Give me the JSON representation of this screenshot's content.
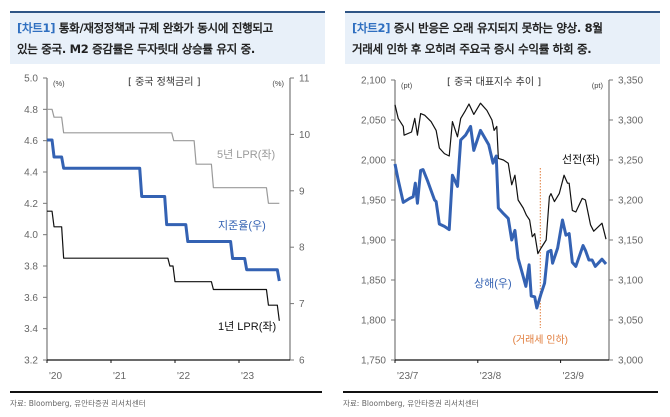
{
  "panels": [
    {
      "tag": "[차트1]",
      "title_line1": "통화/재정정책과 규제 완화가 동시에 진행되고",
      "title_line2": "있는 중국. M2 증감률은 두자릿대 상승률 유지 중.",
      "source": "자료: Bloomberg, 유안타증권 리서치센터"
    },
    {
      "tag": "[차트2]",
      "title_line1": "증시 반응은 오래 유지되지 못하는 양상. 8월",
      "title_line2": "거래세 인하 후 오히려 주요국 증시 수익률 하회 중.",
      "source": "자료: Bloomberg, 유안타증권 리서치센터"
    }
  ],
  "colors": {
    "header_bg": "#e8f0f9",
    "header_border": "#2f5585",
    "tag": "#2f6fc0",
    "blue_series": "#3462b3",
    "gray_series": "#9a9a9a",
    "black_series": "#111111",
    "event": "#e07b39"
  },
  "chart_data": [
    {
      "type": "line",
      "title": "[ 중국 정책금리 ]",
      "ylabel_left": "(%)",
      "ylabel_right": "(%)",
      "ylim_left": [
        3.2,
        5.0
      ],
      "yticks_left": [
        "5.0",
        "4.8",
        "4.6",
        "4.4",
        "4.2",
        "4.0",
        "3.8",
        "3.6",
        "3.4",
        "3.2"
      ],
      "ylim_right": [
        6,
        11
      ],
      "yticks_right": [
        "11",
        "10",
        "9",
        "8",
        "7",
        "6"
      ],
      "xlim": [
        2020.0,
        2023.75
      ],
      "xticks": [
        {
          "value": 2020,
          "label": "'20"
        },
        {
          "value": 2021,
          "label": "'21"
        },
        {
          "value": 2022,
          "label": "'22"
        },
        {
          "value": 2023,
          "label": "'23"
        }
      ],
      "grid": false,
      "series": [
        {
          "name": "5년 LPR(좌)",
          "axis": "left",
          "color": "#9a9a9a",
          "step": true,
          "x": [
            2020.0,
            2020.11,
            2020.26,
            2021.98,
            2022.33,
            2022.6,
            2023.46,
            2023.63
          ],
          "y": [
            4.8,
            4.75,
            4.65,
            4.6,
            4.45,
            4.3,
            4.2,
            4.2
          ]
        },
        {
          "name": "지준율(우)",
          "axis": "right",
          "color": "#3462b3",
          "step": true,
          "x": [
            2020.0,
            2020.11,
            2020.26,
            2021.48,
            2021.87,
            2022.2,
            2022.9,
            2023.12,
            2023.55,
            2023.63
          ],
          "y": [
            9.9,
            9.6,
            9.4,
            8.9,
            8.4,
            8.1,
            7.8,
            7.6,
            7.6,
            7.4
          ]
        },
        {
          "name": "1년 LPR(좌)",
          "axis": "left",
          "color": "#111111",
          "step": true,
          "x": [
            2020.0,
            2020.11,
            2020.26,
            2021.92,
            2022.0,
            2022.6,
            2023.46,
            2023.6,
            2023.63
          ],
          "y": [
            4.15,
            4.05,
            3.85,
            3.8,
            3.7,
            3.65,
            3.55,
            3.55,
            3.45
          ]
        }
      ]
    },
    {
      "type": "line",
      "title": "[ 중국 대표지수 추이 ]",
      "ylabel_left": "(pt)",
      "ylabel_right": "(pt)",
      "ylim_left": [
        1750,
        2100
      ],
      "yticks_left": [
        "2,100",
        "2,050",
        "2,000",
        "1,950",
        "1,900",
        "1,850",
        "1,800",
        "1,750"
      ],
      "ylim_right": [
        3000,
        3350
      ],
      "yticks_right": [
        "3,350",
        "3,300",
        "3,250",
        "3,200",
        "3,150",
        "3,100",
        "3,050",
        "3,000"
      ],
      "x_unit": "days since 2023-07-01",
      "xlim": [
        0,
        79
      ],
      "xticks": [
        {
          "value": 0,
          "label": "'23/7"
        },
        {
          "value": 31,
          "label": "'23/8"
        },
        {
          "value": 62,
          "label": "'23/9"
        }
      ],
      "grid": false,
      "event": {
        "x": 54.4,
        "label": "(거래세 인하)"
      },
      "series": [
        {
          "name": "선전(좌)",
          "axis": "left",
          "color": "#111111",
          "x": [
            0,
            1.2,
            3.1,
            3.4,
            6.2,
            7.4,
            8.4,
            9.6,
            11.1,
            13.5,
            15.4,
            16.6,
            18.5,
            20.3,
            21.5,
            23.4,
            24.6,
            26.4,
            27.7,
            29.5,
            32,
            34.4,
            36.3,
            37.1,
            38.1,
            38.7,
            40.6,
            42.4,
            43.7,
            44.9,
            46.1,
            48,
            49.2,
            50.4,
            51.4,
            52.3,
            53.5,
            54.7,
            56.6,
            57.8,
            58.4,
            59.7,
            61.5,
            63.3,
            64.6,
            65.2,
            66.4,
            67.7,
            70.1,
            71.3,
            73.2,
            74.4,
            77.5,
            79
          ],
          "y": [
            2069,
            2052,
            2042,
            2031,
            2035,
            2052,
            2031,
            2058,
            2056,
            2048,
            2037,
            2015,
            2008,
            2005,
            2048,
            2029,
            2052,
            2062,
            2070,
            2057,
            2071,
            2062,
            2050,
            2037,
            2042,
            2002,
            2000,
            1996,
            1969,
            1981,
            1950,
            1940,
            1931,
            1925,
            1904,
            1908,
            1883,
            1890,
            1900,
            1954,
            1958,
            1948,
            1958,
            1981,
            1971,
            1971,
            1937,
            1935,
            1952,
            1950,
            1919,
            1911,
            1921,
            1901
          ]
        },
        {
          "name": "상해(우)",
          "axis": "right",
          "color": "#3462b3",
          "x": [
            0,
            1.2,
            3.1,
            5.5,
            6.8,
            7.6,
            8.4,
            9.6,
            10.5,
            12.3,
            14.8,
            15.4,
            16.6,
            18.5,
            20.3,
            21.5,
            23.4,
            24.6,
            26.4,
            28.3,
            29.5,
            32,
            35.1,
            36.7,
            37.9,
            38.7,
            40.6,
            42.4,
            43.7,
            44.9,
            46.1,
            47.7,
            49,
            50.2,
            51,
            52.3,
            53.1,
            54.7,
            56,
            57.2,
            58.4,
            59,
            60.9,
            62.7,
            64,
            65.2,
            66.4,
            67.7,
            70.4,
            71.3,
            72.6,
            73.8,
            75,
            77.5,
            79
          ],
          "y": [
            3245,
            3225,
            3197,
            3202,
            3204,
            3221,
            3196,
            3237,
            3238,
            3223,
            3200,
            3198,
            3170,
            3167,
            3163,
            3231,
            3217,
            3275,
            3281,
            3292,
            3262,
            3287,
            3269,
            3246,
            3255,
            3190,
            3183,
            3177,
            3150,
            3162,
            3127,
            3108,
            3092,
            3119,
            3080,
            3079,
            3065,
            3083,
            3096,
            3135,
            3137,
            3121,
            3140,
            3175,
            3156,
            3158,
            3122,
            3117,
            3143,
            3137,
            3125,
            3125,
            3117,
            3126,
            3120
          ]
        }
      ]
    }
  ]
}
